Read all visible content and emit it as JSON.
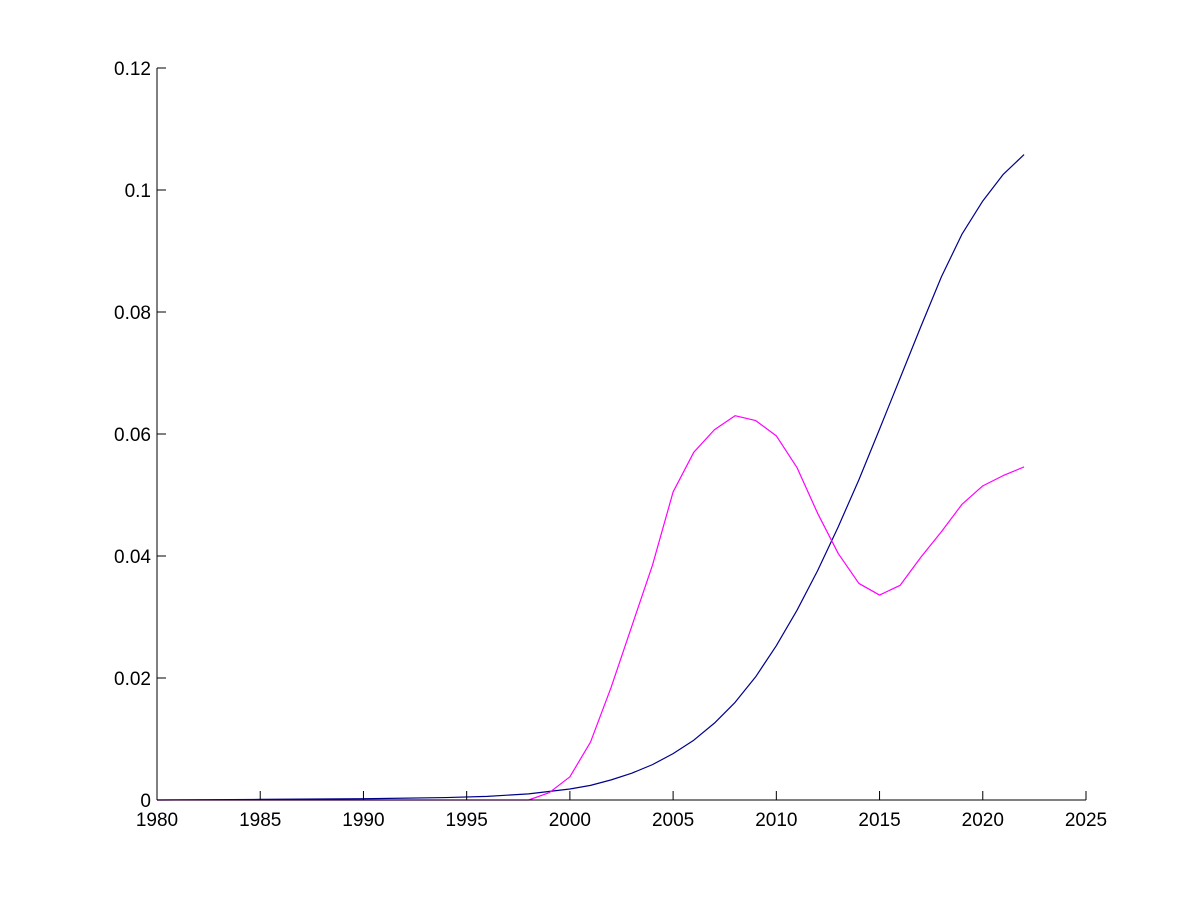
{
  "chart_data": {
    "type": "line",
    "title": "",
    "xlabel": "",
    "ylabel": "",
    "xlim": [
      1980,
      2025
    ],
    "ylim": [
      0,
      0.12
    ],
    "x_ticks": [
      1980,
      1985,
      1990,
      1995,
      2000,
      2005,
      2010,
      2015,
      2020,
      2025
    ],
    "x_tick_labels": [
      "1980",
      "1985",
      "1990",
      "1995",
      "2000",
      "2005",
      "2010",
      "2015",
      "2020",
      "2025"
    ],
    "y_ticks": [
      0,
      0.02,
      0.04,
      0.06,
      0.08,
      0.1,
      0.12
    ],
    "y_tick_labels": [
      "0",
      "0.02",
      "0.04",
      "0.06",
      "0.08",
      "0.1",
      "0.12"
    ],
    "grid": false,
    "legend": "none",
    "series": [
      {
        "color": "#00008b",
        "x": [
          1980,
          1985,
          1990,
          1994,
          1996,
          1998,
          2000,
          2001,
          2002,
          2003,
          2004,
          2005,
          2006,
          2007,
          2008,
          2009,
          2010,
          2011,
          2012,
          2013,
          2014,
          2015,
          2016,
          2017,
          2018,
          2019,
          2020,
          2021,
          2022
        ],
        "y": [
          0,
          0.0001,
          0.0002,
          0.0004,
          0.0006,
          0.001,
          0.0018,
          0.0024,
          0.0033,
          0.0044,
          0.0058,
          0.0076,
          0.0098,
          0.0126,
          0.016,
          0.0202,
          0.0253,
          0.0311,
          0.0376,
          0.0448,
          0.0525,
          0.0608,
          0.0692,
          0.0776,
          0.0858,
          0.0928,
          0.0982,
          0.1026,
          0.1058
        ]
      },
      {
        "color": "#ff00ff",
        "x": [
          1980,
          1985,
          1990,
          1995,
          1998,
          1999,
          2000,
          2001,
          2002,
          2003,
          2004,
          2005,
          2006,
          2007,
          2008,
          2009,
          2010,
          2011,
          2012,
          2013,
          2014,
          2015,
          2016,
          2017,
          2018,
          2019,
          2020,
          2021,
          2022
        ],
        "y": [
          0,
          0,
          0,
          0,
          0,
          0.0012,
          0.0038,
          0.0095,
          0.0185,
          0.0285,
          0.0385,
          0.0505,
          0.057,
          0.0607,
          0.063,
          0.0622,
          0.0597,
          0.0545,
          0.047,
          0.0404,
          0.0355,
          0.0336,
          0.0352,
          0.0398,
          0.044,
          0.0485,
          0.0515,
          0.0532,
          0.0546
        ]
      }
    ]
  }
}
